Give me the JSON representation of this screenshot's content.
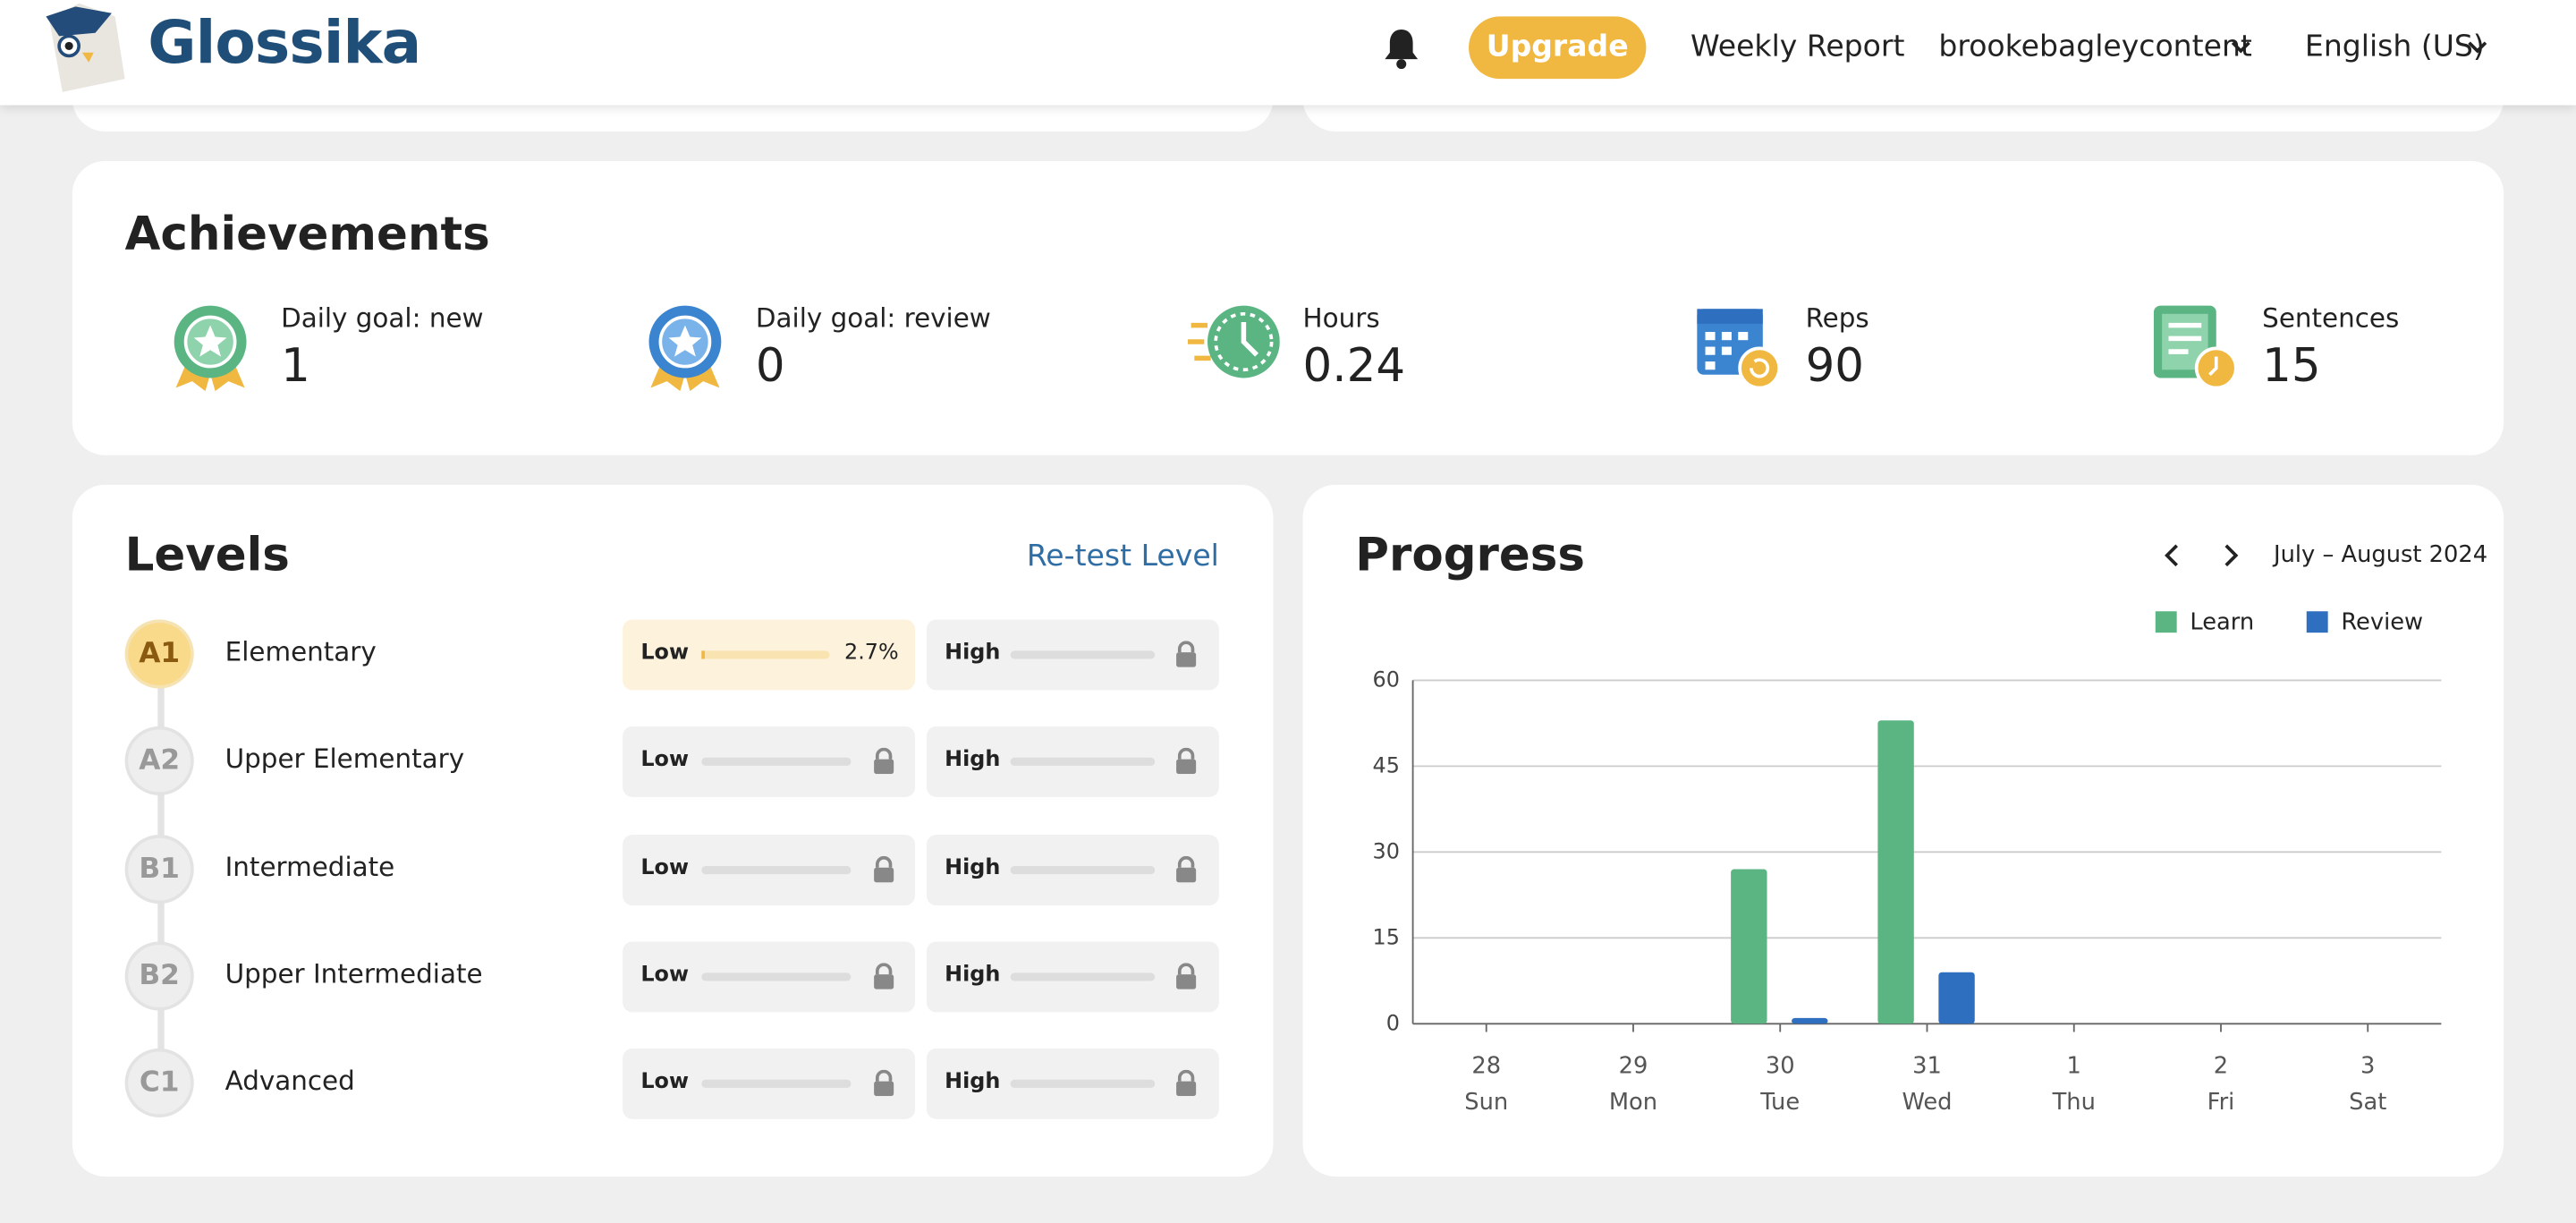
{
  "header": {
    "brand": "Glossika",
    "upgrade": "Upgrade",
    "weekly_report": "Weekly Report",
    "user": "brookebagleycontent",
    "language": "English (US)"
  },
  "achievements": {
    "title": "Achievements",
    "items": [
      {
        "label": "Daily goal: new",
        "value": 1
      },
      {
        "label": "Daily goal: review",
        "value": 0
      },
      {
        "label": "Hours",
        "value": 0.24
      },
      {
        "label": "Reps",
        "value": 90
      },
      {
        "label": "Sentences",
        "value": 15
      }
    ]
  },
  "levels": {
    "title": "Levels",
    "retest": "Re-test Level",
    "low_label": "Low",
    "high_label": "High",
    "rows": [
      {
        "code": "A1",
        "name": "Elementary",
        "low": {
          "value": 2.7,
          "label": "2.7%"
        }
      },
      {
        "code": "A2",
        "name": "Upper Elementary"
      },
      {
        "code": "B1",
        "name": "Intermediate"
      },
      {
        "code": "B2",
        "name": "Upper Intermediate"
      },
      {
        "code": "C1",
        "name": "Advanced"
      }
    ]
  },
  "progress": {
    "title": "Progress",
    "period": "July – August 2024",
    "chart_data": {
      "type": "bar",
      "categories": [
        "28",
        "29",
        "30",
        "31",
        "1",
        "2",
        "3"
      ],
      "weekdays": [
        "Sun",
        "Mon",
        "Tue",
        "Wed",
        "Thu",
        "Fri",
        "Sat"
      ],
      "series": [
        {
          "name": "Learn",
          "color": "#5bb583",
          "values": [
            0,
            0,
            27,
            53,
            0,
            0,
            0
          ]
        },
        {
          "name": "Review",
          "color": "#2f6fbf",
          "values": [
            0,
            0,
            1,
            9,
            0,
            0,
            0
          ]
        }
      ],
      "ylim": [
        0,
        60
      ],
      "yticks": [
        0,
        15,
        30,
        45,
        60
      ],
      "grid": true
    }
  }
}
